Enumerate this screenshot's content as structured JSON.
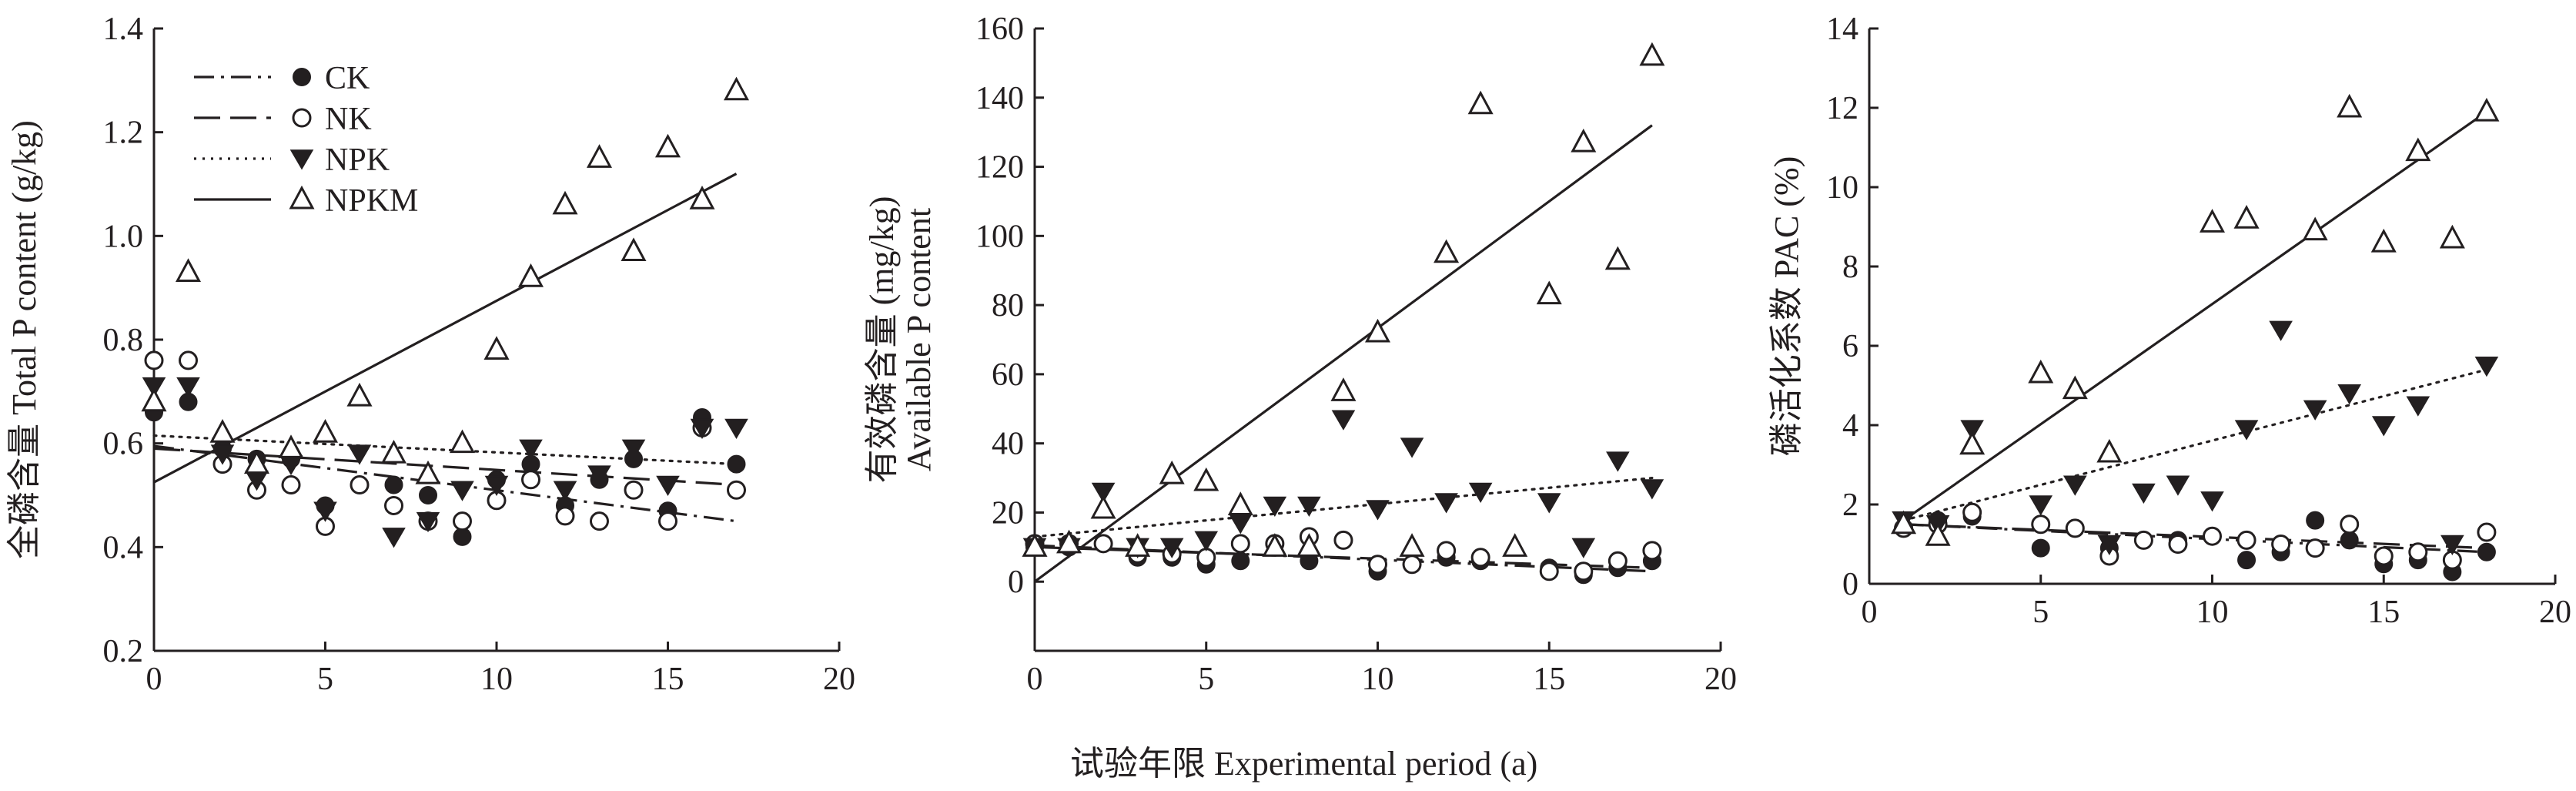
{
  "figure": {
    "common_xlabel": "试验年限 Experimental period (a)"
  },
  "legend": [
    {
      "name": "CK",
      "line": "dashdot",
      "marker": "filled-circle"
    },
    {
      "name": "NK",
      "line": "dash",
      "marker": "open-circle"
    },
    {
      "name": "NPK",
      "line": "dot",
      "marker": "filled-triangle-down"
    },
    {
      "name": "NPKM",
      "line": "solid",
      "marker": "open-triangle-up"
    }
  ],
  "chart_data": [
    {
      "type": "scatter",
      "title": "",
      "ylabel_lines": [
        "全磷含量 Total P content (g/kg)"
      ],
      "xlim": [
        0,
        20
      ],
      "ylim": [
        0.2,
        1.4
      ],
      "xticks": [
        "0",
        "5",
        "10",
        "15",
        "20"
      ],
      "yticks": [
        "0.2",
        "0.4",
        "0.6",
        "0.8",
        "1.0",
        "1.2",
        "1.4"
      ],
      "legend_position": "top-left",
      "series": [
        {
          "name": "CK",
          "x": [
            0,
            1,
            2,
            3,
            4,
            5,
            6,
            7,
            8,
            9,
            10,
            11,
            12,
            13,
            14,
            15,
            16,
            17
          ],
          "y": [
            0.66,
            0.68,
            0.59,
            0.57,
            0.57,
            0.48,
            0.52,
            0.52,
            0.5,
            0.42,
            0.53,
            0.56,
            0.48,
            0.53,
            0.57,
            0.47,
            0.65,
            0.56
          ],
          "trend": [
            0.595,
            0.45
          ]
        },
        {
          "name": "NK",
          "x": [
            0,
            1,
            2,
            3,
            4,
            5,
            6,
            7,
            8,
            9,
            10,
            11,
            12,
            13,
            14,
            15,
            16,
            17
          ],
          "y": [
            0.76,
            0.76,
            0.56,
            0.51,
            0.52,
            0.44,
            0.52,
            0.48,
            0.45,
            0.45,
            0.49,
            0.53,
            0.46,
            0.45,
            0.51,
            0.45,
            0.63,
            0.51
          ],
          "trend": [
            0.59,
            0.52
          ]
        },
        {
          "name": "NPK",
          "x": [
            0,
            1,
            2,
            3,
            4,
            5,
            6,
            7,
            8,
            9,
            10,
            11,
            12,
            13,
            14,
            15,
            16,
            17
          ],
          "y": [
            0.71,
            0.71,
            0.58,
            0.53,
            0.56,
            0.47,
            0.58,
            0.42,
            0.45,
            0.51,
            0.52,
            0.59,
            0.51,
            0.54,
            0.59,
            0.52,
            0.63,
            0.63
          ],
          "trend": [
            0.615,
            0.56
          ]
        },
        {
          "name": "NPKM",
          "x": [
            0,
            1,
            2,
            3,
            4,
            5,
            6,
            7,
            8,
            9,
            10,
            11,
            12,
            13,
            14,
            15,
            16,
            17
          ],
          "y": [
            0.68,
            0.93,
            0.62,
            0.56,
            0.59,
            0.62,
            0.69,
            0.58,
            0.54,
            0.6,
            0.78,
            0.92,
            1.06,
            1.15,
            0.97,
            1.17,
            1.07,
            1.28
          ],
          "trend": [
            0.525,
            1.12
          ]
        }
      ]
    },
    {
      "type": "scatter",
      "title": "",
      "ylabel_lines": [
        "有效磷含量 (mg/kg)",
        "Available P content"
      ],
      "xlim": [
        0,
        20
      ],
      "ylim": [
        -20,
        160
      ],
      "xticks": [
        "0",
        "5",
        "10",
        "15",
        "20"
      ],
      "yticks": [
        "0",
        "20",
        "40",
        "60",
        "80",
        "100",
        "120",
        "140",
        "160"
      ],
      "series": [
        {
          "name": "CK",
          "x": [
            0,
            1,
            3,
            4,
            5,
            6,
            8,
            9,
            10,
            12,
            13,
            15,
            16,
            17,
            18
          ],
          "y": [
            10,
            10,
            7,
            7,
            5,
            6,
            6,
            12,
            3,
            7,
            6,
            4,
            2,
            4,
            6
          ],
          "trend": [
            10.5,
            3
          ]
        },
        {
          "name": "NK",
          "x": [
            0,
            1,
            2,
            3,
            4,
            5,
            6,
            7,
            8,
            9,
            10,
            11,
            12,
            13,
            15,
            16,
            17,
            18
          ],
          "y": [
            11,
            11,
            11,
            8,
            8,
            7,
            11,
            11,
            13,
            12,
            5,
            5,
            9,
            7,
            3,
            3,
            6,
            9
          ],
          "trend": [
            10,
            4
          ]
        },
        {
          "name": "NPK",
          "x": [
            0,
            1,
            2,
            3,
            4,
            5,
            6,
            7,
            8,
            9,
            10,
            11,
            12,
            13,
            15,
            16,
            17,
            18
          ],
          "y": [
            10,
            10,
            26,
            10,
            10,
            12,
            17,
            22,
            22,
            47,
            21,
            39,
            23,
            26,
            23,
            10,
            35,
            27
          ],
          "trend": [
            13,
            30
          ]
        },
        {
          "name": "NPKM",
          "x": [
            0,
            1,
            2,
            3,
            4,
            5,
            6,
            7,
            8,
            9,
            10,
            11,
            12,
            13,
            14,
            15,
            16,
            17,
            18
          ],
          "y": [
            10,
            11,
            21,
            10,
            31,
            29,
            22,
            10,
            10,
            55,
            72,
            10,
            95,
            138,
            10,
            83,
            127,
            93,
            152
          ],
          "trend": [
            0,
            132
          ]
        }
      ]
    },
    {
      "type": "scatter",
      "title": "",
      "ylabel_lines": [
        "磷活化系数 PAC (%)"
      ],
      "xlim": [
        0,
        20
      ],
      "ylim": [
        0,
        14
      ],
      "xticks": [
        "0",
        "5",
        "10",
        "15",
        "20"
      ],
      "yticks": [
        "0",
        "2",
        "4",
        "6",
        "8",
        "10",
        "12",
        "14"
      ],
      "series": [
        {
          "name": "CK",
          "x": [
            1,
            2,
            3,
            5,
            6,
            7,
            8,
            9,
            10,
            11,
            12,
            13,
            14,
            15,
            16,
            17,
            18
          ],
          "y": [
            1.4,
            1.6,
            1.7,
            0.9,
            1.4,
            0.9,
            1.1,
            1.1,
            1.2,
            0.6,
            0.8,
            1.6,
            1.1,
            0.5,
            0.6,
            0.3,
            0.8
          ],
          "trend": [
            1.5,
            0.8
          ]
        },
        {
          "name": "NK",
          "x": [
            1,
            2,
            3,
            5,
            6,
            7,
            8,
            9,
            10,
            11,
            12,
            13,
            14,
            15,
            16,
            17,
            18
          ],
          "y": [
            1.4,
            1.5,
            1.8,
            1.5,
            1.4,
            0.7,
            1.1,
            1.0,
            1.2,
            1.1,
            1.0,
            0.9,
            1.5,
            0.7,
            0.8,
            0.6,
            1.3
          ],
          "trend": [
            1.5,
            0.9
          ]
        },
        {
          "name": "NPK",
          "x": [
            1,
            2,
            3,
            5,
            6,
            7,
            8,
            9,
            10,
            11,
            12,
            13,
            14,
            15,
            16,
            17,
            18
          ],
          "y": [
            1.6,
            1.5,
            3.9,
            2.0,
            2.5,
            1.0,
            2.3,
            2.5,
            2.1,
            3.9,
            6.4,
            4.4,
            4.8,
            4.0,
            4.5,
            1.0,
            5.5
          ],
          "trend": [
            1.6,
            5.4
          ]
        },
        {
          "name": "NPKM",
          "x": [
            1,
            2,
            3,
            5,
            6,
            7,
            10,
            11,
            13,
            14,
            15,
            16,
            17,
            18
          ],
          "y": [
            1.5,
            1.2,
            3.5,
            5.3,
            4.9,
            3.3,
            9.1,
            9.2,
            8.9,
            12.0,
            8.6,
            10.9,
            8.7,
            11.9
          ],
          "trend": [
            1.6,
            11.9
          ]
        }
      ]
    }
  ]
}
